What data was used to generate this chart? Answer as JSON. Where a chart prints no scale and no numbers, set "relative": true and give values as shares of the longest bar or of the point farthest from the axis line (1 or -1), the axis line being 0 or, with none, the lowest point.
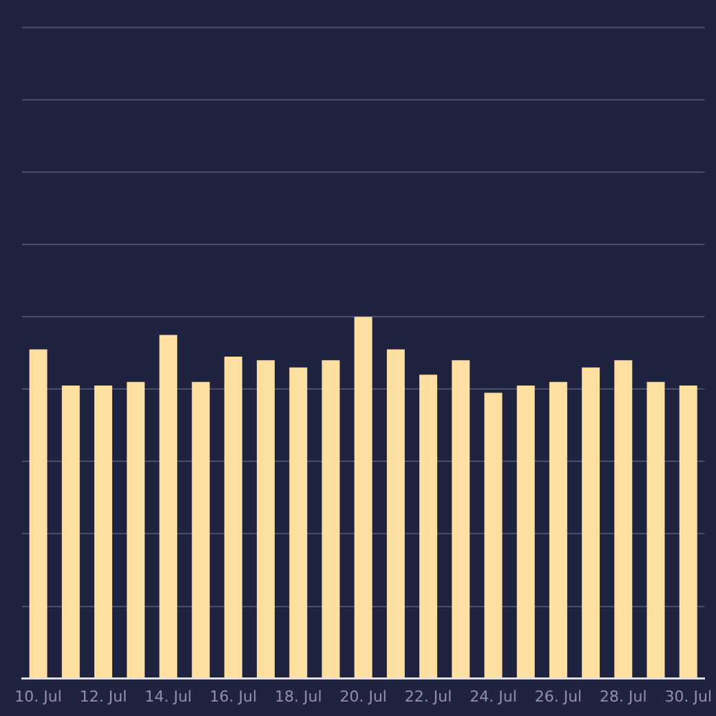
{
  "chart_data": {
    "type": "bar",
    "relative": true,
    "grid": "y",
    "categories": [
      "10. Jul",
      null,
      "12. Jul",
      null,
      "14. Jul",
      null,
      "16. Jul",
      null,
      "18. Jul",
      null,
      "20. Jul",
      null,
      "22. Jul",
      null,
      "24. Jul",
      null,
      "26. Jul",
      null,
      "28. Jul",
      null,
      "30. Jul"
    ],
    "values": [
      0.91,
      0.81,
      0.81,
      0.82,
      0.95,
      0.82,
      0.89,
      0.88,
      0.86,
      0.88,
      1,
      0.91,
      0.84,
      0.88,
      0.79,
      0.81,
      0.82,
      0.86,
      0.88,
      0.82,
      0.81
    ],
    "color": "#fddfa2"
  }
}
